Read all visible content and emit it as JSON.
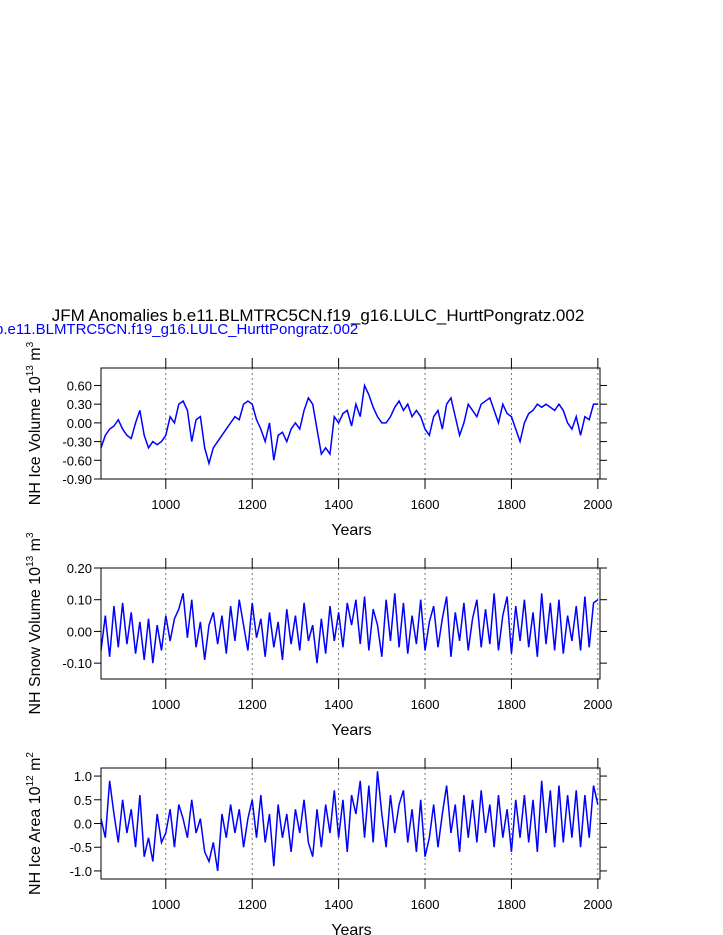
{
  "chart_data": [
    {
      "type": "line",
      "title": "JFM Anomalies b.e11.BLMTRC5CN.f19_g16.LULC_HurttPongratz.002",
      "subtitle": "b.e11.BLMTRC5CN.f19_g16.LULC_HurttPongratz.002",
      "ylabel": [
        "NH Ice Volume 10",
        "13",
        " m",
        "3"
      ],
      "xlabel": "Years",
      "xlim": [
        850,
        2005
      ],
      "xticks": [
        1000,
        1200,
        1400,
        1600,
        1800,
        2000
      ],
      "ylim": [
        -0.9,
        0.88
      ],
      "yticks": [
        {
          "value": -0.9,
          "label": "-0.90"
        },
        {
          "value": -0.6,
          "label": "-0.60"
        },
        {
          "value": -0.3,
          "label": "-0.30"
        },
        {
          "value": 0,
          "label": "0.00"
        },
        {
          "value": 0.3,
          "label": "0.30"
        },
        {
          "value": 0.6,
          "label": "0.60"
        }
      ],
      "grid": true,
      "x": [
        850,
        860,
        870,
        880,
        890,
        900,
        910,
        920,
        930,
        940,
        950,
        960,
        970,
        980,
        990,
        1000,
        1010,
        1020,
        1030,
        1040,
        1050,
        1060,
        1070,
        1080,
        1090,
        1100,
        1110,
        1120,
        1130,
        1140,
        1150,
        1160,
        1170,
        1180,
        1190,
        1200,
        1210,
        1220,
        1230,
        1240,
        1250,
        1260,
        1270,
        1280,
        1290,
        1300,
        1310,
        1320,
        1330,
        1340,
        1350,
        1360,
        1370,
        1380,
        1390,
        1400,
        1410,
        1420,
        1430,
        1440,
        1450,
        1460,
        1470,
        1480,
        1490,
        1500,
        1510,
        1520,
        1530,
        1540,
        1550,
        1560,
        1570,
        1580,
        1590,
        1600,
        1610,
        1620,
        1630,
        1640,
        1650,
        1660,
        1670,
        1680,
        1690,
        1700,
        1710,
        1720,
        1730,
        1740,
        1750,
        1760,
        1770,
        1780,
        1790,
        1800,
        1810,
        1820,
        1830,
        1840,
        1850,
        1860,
        1870,
        1880,
        1890,
        1900,
        1910,
        1920,
        1930,
        1940,
        1950,
        1960,
        1970,
        1980,
        1990,
        2000
      ],
      "series": [
        {
          "color": "#0000ff",
          "values": [
            -0.4,
            -0.2,
            -0.1,
            -0.05,
            0.05,
            -0.1,
            -0.2,
            -0.25,
            0.0,
            0.2,
            -0.2,
            -0.4,
            -0.3,
            -0.35,
            -0.3,
            -0.2,
            0.1,
            0.0,
            0.3,
            0.35,
            0.2,
            -0.3,
            0.05,
            0.1,
            -0.4,
            -0.65,
            -0.4,
            -0.3,
            -0.2,
            -0.1,
            0.0,
            0.1,
            0.05,
            0.3,
            0.35,
            0.3,
            0.05,
            -0.1,
            -0.3,
            0.0,
            -0.6,
            -0.2,
            -0.15,
            -0.3,
            -0.1,
            0.0,
            -0.1,
            0.2,
            0.4,
            0.3,
            -0.1,
            -0.5,
            -0.4,
            -0.5,
            0.1,
            0.0,
            0.15,
            0.2,
            -0.05,
            0.3,
            0.1,
            0.6,
            0.45,
            0.25,
            0.1,
            0.0,
            0.0,
            0.1,
            0.25,
            0.35,
            0.2,
            0.3,
            0.1,
            0.2,
            0.1,
            -0.1,
            -0.2,
            0.1,
            0.2,
            -0.1,
            0.3,
            0.4,
            0.1,
            -0.2,
            0.0,
            0.3,
            0.2,
            0.1,
            0.3,
            0.35,
            0.4,
            0.2,
            0.0,
            0.3,
            0.15,
            0.1,
            -0.1,
            -0.3,
            0.0,
            0.15,
            0.2,
            0.3,
            0.25,
            0.3,
            0.25,
            0.2,
            0.3,
            0.2,
            0.0,
            -0.1,
            0.1,
            -0.2,
            0.1,
            0.05,
            0.3,
            0.3
          ]
        }
      ]
    },
    {
      "type": "line",
      "ylabel": [
        "NH Snow Volume 10",
        "13",
        " m",
        "3"
      ],
      "xlabel": "Years",
      "xlim": [
        850,
        2005
      ],
      "xticks": [
        1000,
        1200,
        1400,
        1600,
        1800,
        2000
      ],
      "ylim": [
        -0.15,
        0.2
      ],
      "yticks": [
        {
          "value": -0.1,
          "label": "-0.10"
        },
        {
          "value": 0,
          "label": "0.00"
        },
        {
          "value": 0.1,
          "label": "0.10"
        },
        {
          "value": 0.2,
          "label": "0.20"
        }
      ],
      "grid": true,
      "x": [
        850,
        860,
        870,
        880,
        890,
        900,
        910,
        920,
        930,
        940,
        950,
        960,
        970,
        980,
        990,
        1000,
        1010,
        1020,
        1030,
        1040,
        1050,
        1060,
        1070,
        1080,
        1090,
        1100,
        1110,
        1120,
        1130,
        1140,
        1150,
        1160,
        1170,
        1180,
        1190,
        1200,
        1210,
        1220,
        1230,
        1240,
        1250,
        1260,
        1270,
        1280,
        1290,
        1300,
        1310,
        1320,
        1330,
        1340,
        1350,
        1360,
        1370,
        1380,
        1390,
        1400,
        1410,
        1420,
        1430,
        1440,
        1450,
        1460,
        1470,
        1480,
        1490,
        1500,
        1510,
        1520,
        1530,
        1540,
        1550,
        1560,
        1570,
        1580,
        1590,
        1600,
        1610,
        1620,
        1630,
        1640,
        1650,
        1660,
        1670,
        1680,
        1690,
        1700,
        1710,
        1720,
        1730,
        1740,
        1750,
        1760,
        1770,
        1780,
        1790,
        1800,
        1810,
        1820,
        1830,
        1840,
        1850,
        1860,
        1870,
        1880,
        1890,
        1900,
        1910,
        1920,
        1930,
        1940,
        1950,
        1960,
        1970,
        1980,
        1990,
        2000
      ],
      "series": [
        {
          "color": "#0000ff",
          "values": [
            -0.06,
            0.05,
            -0.08,
            0.08,
            -0.05,
            0.09,
            -0.04,
            0.06,
            -0.07,
            0.03,
            -0.09,
            0.04,
            -0.1,
            0.02,
            -0.06,
            0.05,
            -0.03,
            0.04,
            0.07,
            0.12,
            -0.02,
            0.1,
            -0.05,
            0.03,
            -0.09,
            0.02,
            0.06,
            -0.04,
            0.05,
            -0.07,
            0.08,
            -0.03,
            0.1,
            0.02,
            -0.06,
            0.09,
            -0.02,
            0.04,
            -0.08,
            0.06,
            -0.05,
            0.03,
            -0.09,
            0.07,
            -0.04,
            0.05,
            -0.06,
            0.09,
            -0.03,
            0.02,
            -0.1,
            0.04,
            -0.07,
            0.08,
            -0.03,
            0.06,
            -0.05,
            0.09,
            0.02,
            0.1,
            -0.04,
            0.11,
            -0.06,
            0.07,
            0.02,
            -0.08,
            0.1,
            -0.03,
            0.12,
            -0.05,
            0.09,
            -0.07,
            0.05,
            -0.04,
            0.1,
            -0.06,
            0.03,
            0.08,
            -0.05,
            0.04,
            0.11,
            -0.08,
            0.06,
            -0.03,
            0.09,
            -0.06,
            0.04,
            0.1,
            -0.05,
            0.07,
            -0.04,
            0.12,
            -0.06,
            0.05,
            0.11,
            -0.07,
            0.08,
            -0.03,
            0.1,
            -0.05,
            0.06,
            -0.08,
            0.12,
            -0.04,
            0.09,
            -0.06,
            0.1,
            -0.07,
            0.05,
            -0.03,
            0.08,
            -0.06,
            0.11,
            -0.05,
            0.09,
            0.1
          ]
        }
      ]
    },
    {
      "type": "line",
      "ylabel": [
        "NH Ice Area 10",
        "12",
        " m",
        "2"
      ],
      "xlabel": "Years",
      "xlim": [
        850,
        2005
      ],
      "xticks": [
        1000,
        1200,
        1400,
        1600,
        1800,
        2000
      ],
      "ylim": [
        -1.17,
        1.17
      ],
      "yticks": [
        {
          "value": -1,
          "label": "-1.0"
        },
        {
          "value": -0.5,
          "label": "-0.5"
        },
        {
          "value": 0,
          "label": "0.0"
        },
        {
          "value": 0.5,
          "label": "0.5"
        },
        {
          "value": 1,
          "label": "1.0"
        }
      ],
      "grid": true,
      "x": [
        850,
        860,
        870,
        880,
        890,
        900,
        910,
        920,
        930,
        940,
        950,
        960,
        970,
        980,
        990,
        1000,
        1010,
        1020,
        1030,
        1040,
        1050,
        1060,
        1070,
        1080,
        1090,
        1100,
        1110,
        1120,
        1130,
        1140,
        1150,
        1160,
        1170,
        1180,
        1190,
        1200,
        1210,
        1220,
        1230,
        1240,
        1250,
        1260,
        1270,
        1280,
        1290,
        1300,
        1310,
        1320,
        1330,
        1340,
        1350,
        1360,
        1370,
        1380,
        1390,
        1400,
        1410,
        1420,
        1430,
        1440,
        1450,
        1460,
        1470,
        1480,
        1490,
        1500,
        1510,
        1520,
        1530,
        1540,
        1550,
        1560,
        1570,
        1580,
        1590,
        1600,
        1610,
        1620,
        1630,
        1640,
        1650,
        1660,
        1670,
        1680,
        1690,
        1700,
        1710,
        1720,
        1730,
        1740,
        1750,
        1760,
        1770,
        1780,
        1790,
        1800,
        1810,
        1820,
        1830,
        1840,
        1850,
        1860,
        1870,
        1880,
        1890,
        1900,
        1910,
        1920,
        1930,
        1940,
        1950,
        1960,
        1970,
        1980,
        1990,
        2000
      ],
      "series": [
        {
          "color": "#0000ff",
          "values": [
            0.1,
            -0.3,
            0.9,
            0.2,
            -0.4,
            0.5,
            -0.2,
            0.3,
            -0.5,
            0.6,
            -0.7,
            -0.3,
            -0.8,
            0.2,
            -0.4,
            -0.2,
            0.3,
            -0.5,
            0.4,
            0.1,
            -0.3,
            0.5,
            -0.2,
            0.1,
            -0.6,
            -0.8,
            -0.4,
            -1.0,
            0.2,
            -0.3,
            0.4,
            -0.2,
            0.3,
            -0.5,
            0.1,
            0.5,
            -0.3,
            0.6,
            -0.4,
            0.2,
            -0.9,
            0.4,
            -0.3,
            0.2,
            -0.6,
            0.3,
            -0.2,
            0.5,
            -0.4,
            -0.7,
            0.3,
            -0.5,
            0.4,
            -0.2,
            0.7,
            -0.3,
            0.5,
            -0.6,
            0.6,
            0.2,
            0.9,
            -0.3,
            0.8,
            -0.4,
            1.1,
            0.2,
            -0.5,
            0.6,
            -0.2,
            0.4,
            0.7,
            -0.4,
            0.3,
            -0.6,
            0.5,
            -0.7,
            -0.3,
            0.4,
            -0.5,
            0.2,
            0.8,
            -0.2,
            0.4,
            -0.6,
            0.6,
            -0.3,
            0.5,
            -0.4,
            0.7,
            -0.2,
            0.4,
            -0.5,
            0.6,
            -0.3,
            0.3,
            -0.6,
            0.5,
            -0.3,
            0.6,
            -0.4,
            0.5,
            -0.6,
            0.9,
            -0.2,
            0.7,
            -0.5,
            0.8,
            -0.4,
            0.6,
            -0.3,
            0.7,
            -0.5,
            0.6,
            -0.3,
            0.8,
            0.4
          ]
        }
      ]
    }
  ]
}
